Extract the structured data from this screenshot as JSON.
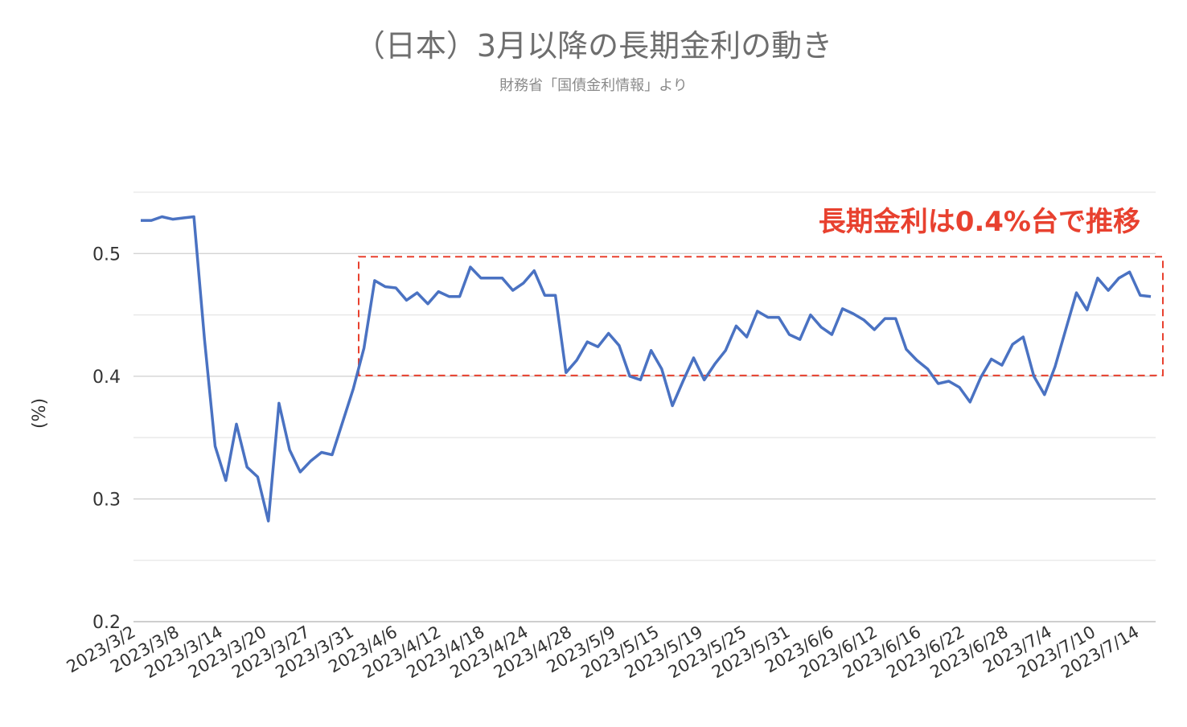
{
  "chart_data": {
    "type": "line",
    "title": "（日本）3月以降の長期金利の動き",
    "subtitle": "財務省「国債金利情報」より",
    "ylabel": "(%)",
    "xlabel": "",
    "ylim": [
      0.2,
      0.55
    ],
    "yticks": [
      "0.2",
      "0.3",
      "0.4",
      "0.5"
    ],
    "grid": true,
    "legend": "none",
    "series_color": "#4a72c2",
    "annotation": {
      "text": "長期金利は0.4%台で推移",
      "color": "#e8412f",
      "y_range": [
        0.4,
        0.5
      ]
    },
    "tick_labels": [
      "2023/3/2",
      "2023/3/8",
      "2023/3/14",
      "2023/3/20",
      "2023/3/27",
      "2023/3/31",
      "2023/4/6",
      "2023/4/12",
      "2023/4/18",
      "2023/4/24",
      "2023/4/28",
      "2023/5/9",
      "2023/5/15",
      "2023/5/19",
      "2023/5/25",
      "2023/5/31",
      "2023/6/6",
      "2023/6/12",
      "2023/6/16",
      "2023/6/22",
      "2023/6/28",
      "2023/7/4",
      "2023/7/10",
      "2023/7/14"
    ],
    "series": [
      {
        "values": [
          0.527,
          0.527,
          0.53,
          0.528,
          0.529,
          0.53,
          0.43,
          0.343,
          0.315,
          0.361,
          0.326,
          0.318,
          0.282,
          0.378,
          0.34,
          0.322,
          0.331,
          0.338,
          0.336,
          0.363,
          0.39,
          0.423,
          0.478,
          0.473,
          0.472,
          0.462,
          0.468,
          0.459,
          0.469,
          0.465,
          0.465,
          0.489,
          0.48,
          0.48,
          0.48,
          0.47,
          0.476,
          0.486,
          0.466,
          0.466,
          0.403,
          0.413,
          0.428,
          0.424,
          0.435,
          0.425,
          0.4,
          0.397,
          0.421,
          0.406,
          0.376,
          0.396,
          0.415,
          0.397,
          0.41,
          0.421,
          0.441,
          0.432,
          0.453,
          0.448,
          0.448,
          0.434,
          0.43,
          0.45,
          0.44,
          0.434,
          0.455,
          0.451,
          0.446,
          0.438,
          0.447,
          0.447,
          0.422,
          0.413,
          0.406,
          0.394,
          0.396,
          0.391,
          0.379,
          0.399,
          0.414,
          0.409,
          0.426,
          0.432,
          0.4,
          0.385,
          0.408,
          0.438,
          0.468,
          0.454,
          0.48,
          0.47,
          0.48,
          0.485,
          0.466,
          0.465
        ]
      }
    ]
  }
}
